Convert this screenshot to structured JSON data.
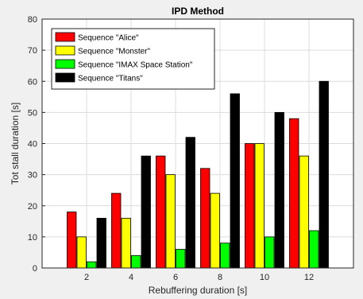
{
  "colors": {
    "Sequence \"Alice\"": "#ff0000",
    "Sequence \"Monster\"": "#ffff00",
    "Sequence \"IMAX Space Station\"": "#00ff00",
    "Sequence \"Titans\"": "#000000"
  },
  "chart_data": {
    "type": "bar",
    "title": "IPD Method",
    "xlabel": "Rebuffering duration [s]",
    "ylabel": "Tot stall duration [s]",
    "categories": [
      "2",
      "4",
      "6",
      "8",
      "10",
      "12"
    ],
    "yticks": [
      "0",
      "10",
      "20",
      "30",
      "40",
      "50",
      "60",
      "70",
      "80"
    ],
    "ylim": [
      0,
      80
    ],
    "grid": true,
    "legend_position": "top-left",
    "series": [
      {
        "name": "Sequence \"Alice\"",
        "values": [
          18,
          24,
          36,
          32,
          40,
          48
        ]
      },
      {
        "name": "Sequence \"Monster\"",
        "values": [
          10,
          16,
          30,
          24,
          40,
          36
        ]
      },
      {
        "name": "Sequence \"IMAX Space Station\"",
        "values": [
          2,
          4,
          6,
          8,
          10,
          12
        ]
      },
      {
        "name": "Sequence \"Titans\"",
        "values": [
          16,
          36,
          42,
          56,
          50,
          60
        ]
      }
    ]
  }
}
